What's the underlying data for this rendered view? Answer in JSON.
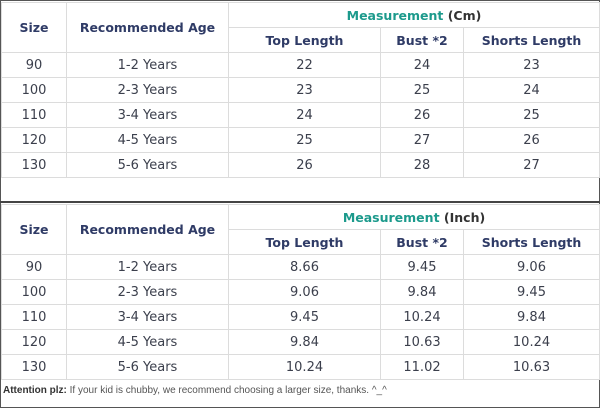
{
  "headers": {
    "size": "Size",
    "age": "Recommended Age",
    "measurement": "Measurement",
    "top": "Top Length",
    "bust": "Bust *2",
    "shorts": "Shorts Length"
  },
  "tables": [
    {
      "unit": "(Cm)",
      "rows": [
        [
          "90",
          "1-2 Years",
          "22",
          "24",
          "23"
        ],
        [
          "100",
          "2-3 Years",
          "23",
          "25",
          "24"
        ],
        [
          "110",
          "3-4 Years",
          "24",
          "26",
          "25"
        ],
        [
          "120",
          "4-5 Years",
          "25",
          "27",
          "26"
        ],
        [
          "130",
          "5-6 Years",
          "26",
          "28",
          "27"
        ]
      ]
    },
    {
      "unit": "(Inch)",
      "rows": [
        [
          "90",
          "1-2 Years",
          "8.66",
          "9.45",
          "9.06"
        ],
        [
          "100",
          "2-3 Years",
          "9.06",
          "9.84",
          "9.45"
        ],
        [
          "110",
          "3-4 Years",
          "9.45",
          "10.24",
          "9.84"
        ],
        [
          "120",
          "4-5 Years",
          "9.84",
          "10.63",
          "10.24"
        ],
        [
          "130",
          "5-6 Years",
          "10.24",
          "11.02",
          "10.63"
        ]
      ]
    }
  ],
  "note": {
    "label": "Attention plz:",
    "text": " If your kid is chubby, we recommend choosing a larger size, thanks. ^_^"
  },
  "colors": {
    "header": "#2f3b66",
    "measurement": "#1c9a8c"
  }
}
